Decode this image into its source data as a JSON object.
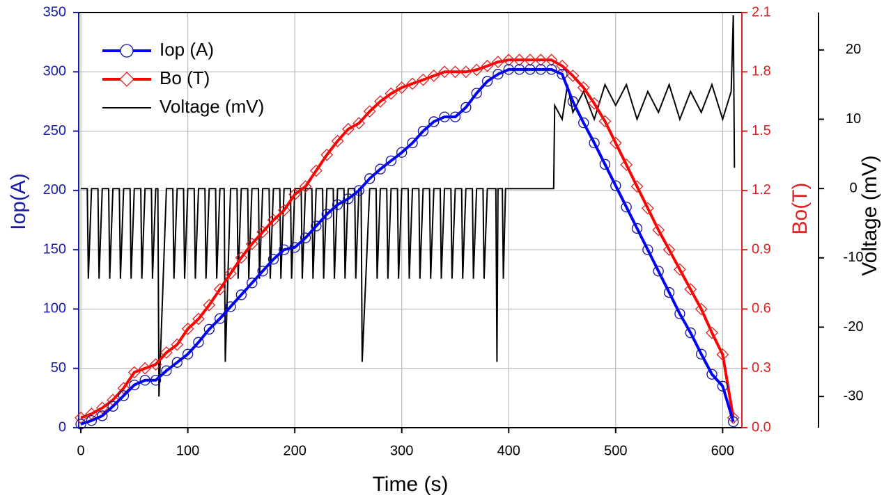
{
  "chart_data": {
    "type": "line",
    "x_label": "Time (s)",
    "y_label": "Iop(A)",
    "y2_label": "Bo(T)",
    "y3_label": "Voltage (mV)",
    "xlim": [
      -2,
      618
    ],
    "xticks": [
      0,
      100,
      200,
      300,
      400,
      500,
      600
    ],
    "ylim": [
      0,
      350
    ],
    "yticks": [
      0,
      50,
      100,
      150,
      200,
      250,
      300,
      350
    ],
    "y2lim": [
      0,
      2.1
    ],
    "y2ticks": [
      {
        "value": 0,
        "label": "0.0"
      },
      0.3,
      0.6,
      0.9,
      1.2,
      1.5,
      1.8,
      2.1
    ],
    "y3lim": [
      -34.5,
      25.4
    ],
    "y3ticks": [
      -30,
      -20,
      -10,
      0,
      10,
      20
    ],
    "grid": true,
    "legend": "upper left",
    "x": [
      0,
      10,
      20,
      30,
      40,
      50,
      60,
      70,
      80,
      90,
      100,
      110,
      120,
      130,
      140,
      150,
      160,
      170,
      180,
      190,
      200,
      210,
      220,
      230,
      240,
      250,
      260,
      270,
      280,
      290,
      300,
      310,
      320,
      330,
      340,
      350,
      360,
      370,
      380,
      390,
      400,
      410,
      420,
      430,
      440,
      450,
      460,
      470,
      480,
      490,
      500,
      510,
      520,
      530,
      540,
      550,
      560,
      570,
      580,
      590,
      600,
      610
    ],
    "series": [
      {
        "name": "Iop (A)",
        "color": "#0000ff",
        "marker_color": "#1010a0",
        "marker": "circle",
        "axis": "y",
        "values": [
          3,
          6,
          10,
          18,
          27,
          36,
          40,
          40,
          48,
          55,
          62,
          72,
          83,
          92,
          102,
          112,
          122,
          132,
          142,
          150,
          152,
          160,
          170,
          180,
          188,
          193,
          200,
          210,
          218,
          225,
          232,
          240,
          250,
          258,
          262,
          262,
          270,
          282,
          292,
          298,
          302,
          302,
          302,
          302,
          302,
          298,
          275,
          257,
          240,
          222,
          204,
          186,
          168,
          150,
          132,
          114,
          96,
          80,
          62,
          45,
          35,
          5
        ]
      },
      {
        "name": "Bo (T)",
        "color": "#ff0000",
        "marker_color": "#e02020",
        "marker": "diamond",
        "axis": "y2",
        "values": [
          0.05,
          0.07,
          0.1,
          0.14,
          0.2,
          0.28,
          0.3,
          0.32,
          0.38,
          0.42,
          0.5,
          0.55,
          0.62,
          0.7,
          0.78,
          0.86,
          0.93,
          0.99,
          1.05,
          1.1,
          1.18,
          1.22,
          1.3,
          1.38,
          1.45,
          1.51,
          1.54,
          1.6,
          1.65,
          1.69,
          1.72,
          1.74,
          1.76,
          1.78,
          1.8,
          1.8,
          1.8,
          1.81,
          1.83,
          1.85,
          1.86,
          1.86,
          1.86,
          1.86,
          1.86,
          1.83,
          1.78,
          1.72,
          1.64,
          1.55,
          1.44,
          1.33,
          1.22,
          1.11,
          1.0,
          0.9,
          0.8,
          0.7,
          0.6,
          0.48,
          0.37,
          0.05
        ]
      },
      {
        "name": "Voltage (mV)",
        "color": "#000000",
        "marker": "none",
        "axis": "y3",
        "x": [
          0,
          6,
          7,
          10,
          16,
          17,
          20,
          26,
          27,
          30,
          36,
          37,
          40,
          46,
          47,
          50,
          56,
          57,
          60,
          66,
          67,
          70,
          72,
          73,
          80,
          86,
          87,
          90,
          96,
          97,
          100,
          106,
          107,
          110,
          116,
          117,
          120,
          126,
          127,
          130,
          134,
          135,
          140,
          146,
          147,
          150,
          156,
          157,
          160,
          166,
          167,
          170,
          176,
          177,
          180,
          186,
          187,
          190,
          196,
          197,
          200,
          206,
          207,
          210,
          216,
          217,
          220,
          226,
          227,
          230,
          236,
          237,
          240,
          246,
          247,
          250,
          256,
          257,
          260,
          262,
          263,
          270,
          276,
          277,
          280,
          286,
          287,
          290,
          296,
          297,
          300,
          306,
          307,
          310,
          316,
          317,
          320,
          326,
          327,
          330,
          336,
          337,
          340,
          346,
          347,
          350,
          356,
          357,
          360,
          366,
          367,
          370,
          376,
          377,
          380,
          388,
          389,
          390,
          394,
          395,
          397,
          442,
          443,
          450,
          455,
          460,
          470,
          480,
          490,
          500,
          510,
          520,
          530,
          540,
          550,
          560,
          570,
          580,
          590,
          600,
          608,
          610,
          611
        ],
        "values": [
          0,
          0,
          -13,
          0,
          0,
          -13,
          0,
          0,
          -13,
          0,
          0,
          -13,
          0,
          0,
          -13,
          0,
          0,
          -13,
          0,
          0,
          -13,
          0,
          0,
          -30,
          0,
          0,
          -13,
          0,
          0,
          -13,
          0,
          0,
          -13,
          0,
          0,
          -13,
          0,
          0,
          -13,
          0,
          0,
          -25,
          0,
          0,
          -13,
          0,
          0,
          -13,
          0,
          0,
          -13,
          0,
          0,
          -13,
          0,
          0,
          -13,
          0,
          0,
          -13,
          0,
          0,
          -13,
          0,
          0,
          -13,
          0,
          0,
          -13,
          0,
          0,
          -13,
          0,
          0,
          -13,
          0,
          0,
          -13,
          0,
          0,
          -25,
          0,
          0,
          -13,
          0,
          0,
          -13,
          0,
          0,
          -13,
          0,
          0,
          -13,
          0,
          0,
          -13,
          0,
          0,
          -13,
          0,
          0,
          -13,
          0,
          0,
          -13,
          0,
          0,
          -13,
          0,
          0,
          -13,
          0,
          0,
          -13,
          0,
          0,
          -25,
          0,
          0,
          -13,
          0,
          0,
          12,
          10,
          15,
          11,
          14,
          10,
          15,
          12,
          15,
          10,
          14,
          11,
          15,
          10,
          14,
          11,
          15,
          10,
          14,
          25,
          3
        ]
      }
    ]
  }
}
